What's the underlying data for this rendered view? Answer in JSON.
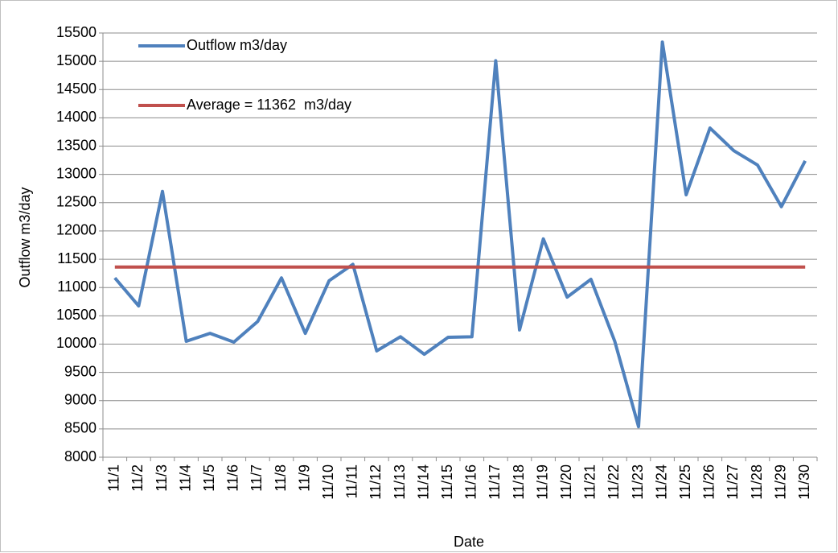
{
  "chart_data": {
    "type": "line",
    "categories": [
      "11/1",
      "11/2",
      "11/3",
      "11/4",
      "11/5",
      "11/6",
      "11/7",
      "11/8",
      "11/9",
      "11/10",
      "11/11",
      "11/12",
      "11/13",
      "11/14",
      "11/15",
      "11/16",
      "11/17",
      "11/18",
      "11/19",
      "11/20",
      "11/21",
      "11/22",
      "11/23",
      "11/24",
      "11/25",
      "11/26",
      "11/27",
      "11/28",
      "11/29",
      "11/30"
    ],
    "series": [
      {
        "name": "Outflow m3/day",
        "color": "#4f81bd",
        "values": [
          11170,
          10675,
          12700,
          10050,
          10190,
          10035,
          10400,
          11170,
          10190,
          11120,
          11410,
          9880,
          10130,
          9820,
          10120,
          10130,
          15010,
          10250,
          11860,
          10830,
          11145,
          10050,
          8540,
          15340,
          12640,
          13820,
          13420,
          13165,
          12430,
          13240
        ]
      },
      {
        "name": "Average = 11362  m3/day",
        "color": "#c0504d",
        "values": [
          11362,
          11362,
          11362,
          11362,
          11362,
          11362,
          11362,
          11362,
          11362,
          11362,
          11362,
          11362,
          11362,
          11362,
          11362,
          11362,
          11362,
          11362,
          11362,
          11362,
          11362,
          11362,
          11362,
          11362,
          11362,
          11362,
          11362,
          11362,
          11362,
          11362
        ]
      }
    ],
    "x_label": "Date",
    "y_label": "Outflow m3/day",
    "ylim": [
      8000,
      15500
    ],
    "yticks": [
      8000,
      8500,
      9000,
      9500,
      10000,
      10500,
      11000,
      11500,
      12000,
      12500,
      13000,
      13500,
      14000,
      14500,
      15000,
      15500
    ],
    "grid": true,
    "legend": "top-left"
  }
}
